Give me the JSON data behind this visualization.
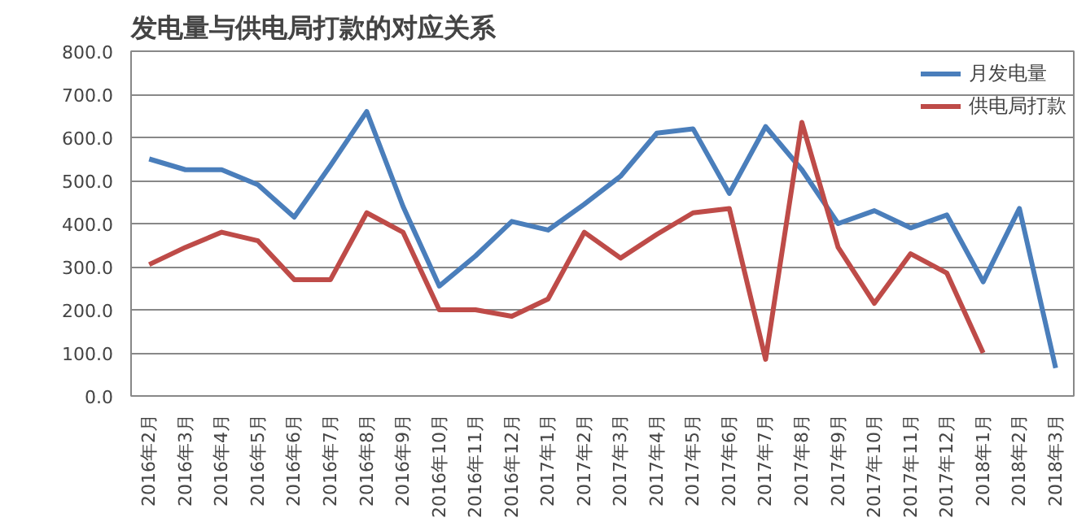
{
  "chart_data": {
    "type": "line",
    "title": "发电量与供电局打款的对应关系",
    "categories": [
      "2016年2月",
      "2016年3月",
      "2016年4月",
      "2016年5月",
      "2016年6月",
      "2016年7月",
      "2016年8月",
      "2016年9月",
      "2016年10月",
      "2016年11月",
      "2016年12月",
      "2017年1月",
      "2017年2月",
      "2017年3月",
      "2017年4月",
      "2017年5月",
      "2017年6月",
      "2017年7月",
      "2017年8月",
      "2017年9月",
      "2017年10月",
      "2017年11月",
      "2017年12月",
      "2018年1月",
      "2018年2月",
      "2018年3月"
    ],
    "series": [
      {
        "name": "月发电量",
        "color": "#4a7ebb",
        "values": [
          550,
          525,
          525,
          490,
          415,
          535,
          660,
          440,
          255,
          325,
          405,
          385,
          445,
          510,
          610,
          620,
          470,
          625,
          525,
          400,
          430,
          390,
          420,
          265,
          435,
          65
        ]
      },
      {
        "name": "供电局打款",
        "color": "#be4b48",
        "values": [
          305,
          345,
          380,
          360,
          270,
          270,
          425,
          380,
          200,
          200,
          185,
          225,
          380,
          320,
          375,
          425,
          435,
          85,
          635,
          345,
          215,
          330,
          285,
          100,
          null,
          null
        ]
      }
    ],
    "ylim": [
      0,
      800
    ],
    "yticks": [
      {
        "value": 0,
        "label": "0.0"
      },
      {
        "value": 100,
        "label": "100.0"
      },
      {
        "value": 200,
        "label": "200.0"
      },
      {
        "value": 300,
        "label": "300.0"
      },
      {
        "value": 400,
        "label": "400.0"
      },
      {
        "value": 500,
        "label": "500.0"
      },
      {
        "value": 600,
        "label": "600.0"
      },
      {
        "value": 700,
        "label": "700.0"
      },
      {
        "value": 800,
        "label": "800.0"
      }
    ],
    "grid": "y",
    "legend": "top right",
    "marker": "none",
    "line_style": "solid"
  }
}
